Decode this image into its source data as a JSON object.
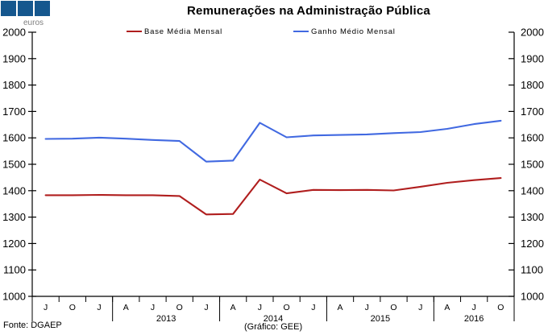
{
  "logo": {
    "color": "#15578E",
    "square_count": 3
  },
  "header": {
    "title": "Remunerações na Administração Pública",
    "unit_label": "euros"
  },
  "legend": {
    "items": [
      {
        "label": "Base Média Mensal",
        "color": "#B01E1E"
      },
      {
        "label": "Ganho Médio Mensal",
        "color": "#4169E1"
      }
    ]
  },
  "footer": {
    "source": "Fonte: DGAEP",
    "credit": "(Gráfico: GEE)"
  },
  "chart_data": {
    "type": "line",
    "title": "Remunerações na Administração Pública",
    "unit": "euros",
    "x_labels": [
      "J",
      "O",
      "J",
      "A",
      "J",
      "O",
      "J",
      "A",
      "J",
      "O",
      "J",
      "A",
      "J",
      "O",
      "J",
      "A",
      "J",
      "O"
    ],
    "year_groups": [
      {
        "label": "2013",
        "from_boundary": 3,
        "to_boundary": 7
      },
      {
        "label": "2014",
        "from_boundary": 7,
        "to_boundary": 11
      },
      {
        "label": "2015",
        "from_boundary": 11,
        "to_boundary": 15
      },
      {
        "label": "2016",
        "from_boundary": 15,
        "to_boundary": 18
      }
    ],
    "year_separator_boundaries": [
      0,
      3,
      7,
      11,
      15,
      18
    ],
    "y_ticks": [
      2000,
      1900,
      1800,
      1700,
      1600,
      1500,
      1400,
      1300,
      1200,
      1100,
      1000
    ],
    "ylim": [
      1000,
      2000
    ],
    "grid": false,
    "legend_position": "top",
    "series": [
      {
        "name": "Base Média Mensal",
        "color": "#B01E1E",
        "values": [
          1383,
          1383,
          1384,
          1383,
          1383,
          1380,
          1310,
          1312,
          1442,
          1390,
          1403,
          1402,
          1403,
          1401,
          1415,
          1430,
          1440,
          1448
        ]
      },
      {
        "name": "Ganho Médio Mensal",
        "color": "#4169E1",
        "values": [
          1596,
          1597,
          1601,
          1597,
          1592,
          1588,
          1510,
          1514,
          1657,
          1602,
          1609,
          1611,
          1613,
          1618,
          1622,
          1634,
          1652,
          1665
        ]
      }
    ]
  }
}
